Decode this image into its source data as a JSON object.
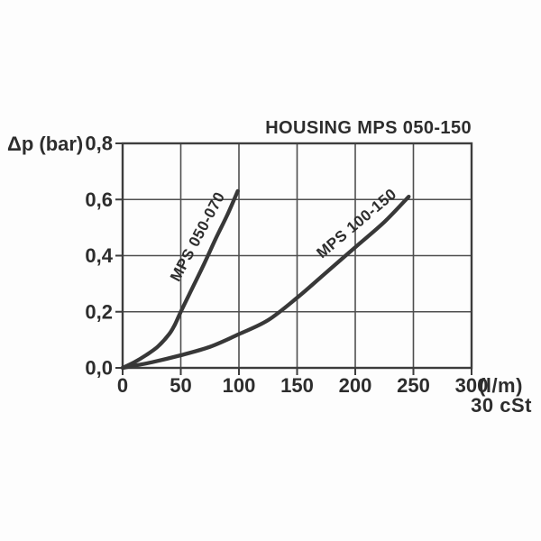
{
  "page": {
    "background": "#fdfdfd"
  },
  "chart_data": {
    "type": "line",
    "title": "HOUSING MPS 050-150",
    "ylabel": "Δp (bar)",
    "xlabel": "(l/m)",
    "annotation": "30 cSt",
    "xlim": [
      0,
      300
    ],
    "ylim": [
      0,
      0.8
    ],
    "grid": true,
    "x_ticks": [
      0,
      50,
      100,
      150,
      200,
      250,
      300
    ],
    "x_tick_labels": [
      "0",
      "50",
      "100",
      "150",
      "200",
      "250",
      "300"
    ],
    "y_ticks": [
      0,
      0.2,
      0.4,
      0.6,
      0.8
    ],
    "y_tick_labels": [
      "0,0",
      "0,2",
      "0,4",
      "0,6",
      "0,8"
    ],
    "series": [
      {
        "name": "MPS 050-070",
        "points": [
          [
            0,
            0
          ],
          [
            10,
            0.02
          ],
          [
            20,
            0.045
          ],
          [
            30,
            0.075
          ],
          [
            40,
            0.12
          ],
          [
            45,
            0.155
          ],
          [
            50,
            0.2
          ],
          [
            60,
            0.285
          ],
          [
            70,
            0.37
          ],
          [
            80,
            0.46
          ],
          [
            90,
            0.545
          ],
          [
            99,
            0.63
          ]
        ]
      },
      {
        "name": "MPS 100-150",
        "points": [
          [
            0,
            0
          ],
          [
            25,
            0.02
          ],
          [
            50,
            0.045
          ],
          [
            75,
            0.075
          ],
          [
            100,
            0.12
          ],
          [
            125,
            0.17
          ],
          [
            150,
            0.25
          ],
          [
            175,
            0.34
          ],
          [
            200,
            0.43
          ],
          [
            225,
            0.52
          ],
          [
            246,
            0.61
          ]
        ]
      }
    ],
    "colors": {
      "curve": "#383838",
      "grid": "#4f4f4f",
      "border": "#3d3d3d",
      "text": "#2d2d2d"
    }
  }
}
